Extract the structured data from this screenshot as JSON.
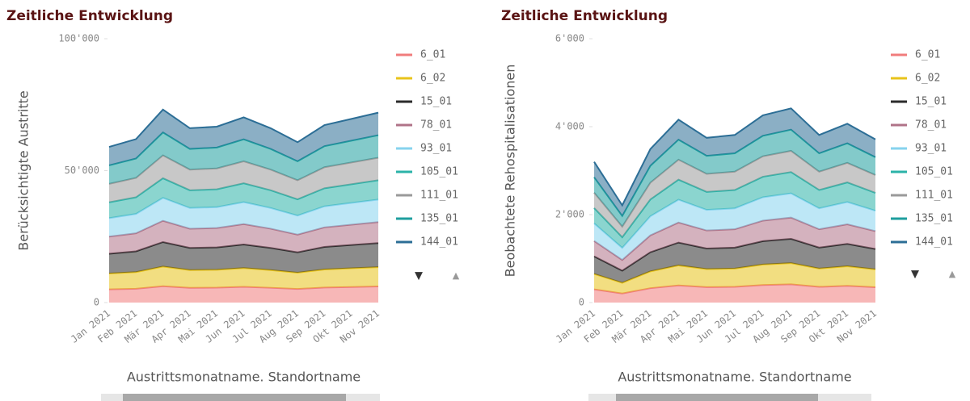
{
  "chart_data": [
    {
      "type": "stacked_area",
      "title": "Zeitliche Entwicklung",
      "y_label": "Berücksichtigte Austritte",
      "x_label": "Austrittsmonatname. Standortname",
      "categories": [
        "Jan 2021",
        "Feb 2021",
        "Mär 2021",
        "Apr 2021",
        "Mai 2021",
        "Jun 2021",
        "Jul 2021",
        "Aug 2021",
        "Sep 2021",
        "Okt 2021",
        "Nov 2021"
      ],
      "ylim": [
        0,
        100000
      ],
      "yticks": [
        0,
        {
          "value": 50000,
          "label": "50'000"
        },
        {
          "value": 100000,
          "label": "100'000"
        }
      ],
      "series": [
        {
          "name": "6_01",
          "color": "#f07c7c",
          "values": [
            5000,
            5250,
            6200,
            5600,
            5650,
            5950,
            5600,
            5150,
            5700,
            5900,
            6100
          ]
        },
        {
          "name": "6_02",
          "color": "#e8c31a",
          "values": [
            6000,
            6300,
            7440,
            6720,
            6780,
            7140,
            6720,
            6180,
            6840,
            7080,
            7320
          ]
        },
        {
          "name": "15_01",
          "color": "#2b2b2b",
          "values": [
            7500,
            7875,
            9300,
            8400,
            8475,
            8925,
            8400,
            7725,
            8550,
            8850,
            9150
          ]
        },
        {
          "name": "78_01",
          "color": "#b07388",
          "values": [
            6500,
            6825,
            8060,
            7280,
            7345,
            7735,
            7280,
            6695,
            7410,
            7670,
            7930
          ]
        },
        {
          "name": "93_01",
          "color": "#86d3ee",
          "values": [
            7000,
            7350,
            8680,
            7840,
            7910,
            8330,
            7840,
            7210,
            7980,
            8260,
            8540
          ]
        },
        {
          "name": "105_01",
          "color": "#2bb3a8",
          "values": [
            6000,
            6300,
            7440,
            6720,
            6780,
            7140,
            6720,
            6180,
            6840,
            7080,
            7320
          ]
        },
        {
          "name": "111_01",
          "color": "#9a9a9a",
          "values": [
            7000,
            7350,
            8680,
            7840,
            7910,
            8330,
            7840,
            7210,
            7980,
            8260,
            8540
          ]
        },
        {
          "name": "135_01",
          "color": "#1e9e9e",
          "values": [
            7000,
            7350,
            8680,
            7840,
            7910,
            8330,
            7840,
            7210,
            7980,
            8260,
            8540
          ]
        },
        {
          "name": "144_01",
          "color": "#2c6e96",
          "values": [
            7000,
            7350,
            8680,
            7840,
            7910,
            8330,
            7840,
            7210,
            7980,
            8260,
            8540
          ]
        }
      ]
    },
    {
      "type": "stacked_area",
      "title": "Zeitliche Entwicklung",
      "y_label": "Beobachtete Rehospitalisationen",
      "x_label": "Austrittsmonatname. Standortname",
      "categories": [
        "Jan 2021",
        "Feb 2021",
        "Mär 2021",
        "Apr 2021",
        "Mai 2021",
        "Jun 2021",
        "Jul 2021",
        "Aug 2021",
        "Sep 2021",
        "Okt 2021",
        "Nov 2021"
      ],
      "ylim": [
        0,
        6000
      ],
      "yticks": [
        0,
        {
          "value": 2000,
          "label": "2'000"
        },
        {
          "value": 4000,
          "label": "4'000"
        },
        {
          "value": 6000,
          "label": "6'000"
        }
      ],
      "series": [
        {
          "name": "6_01",
          "color": "#f07c7c",
          "values": [
            300,
            207,
            327,
            390,
            351,
            357,
            399,
            414,
            357,
            381,
            348
          ]
        },
        {
          "name": "6_02",
          "color": "#e8c31a",
          "values": [
            350,
            242,
            382,
            455,
            410,
            417,
            466,
            483,
            417,
            445,
            406
          ]
        },
        {
          "name": "15_01",
          "color": "#2b2b2b",
          "values": [
            400,
            276,
            436,
            520,
            468,
            476,
            532,
            552,
            476,
            508,
            464
          ]
        },
        {
          "name": "78_01",
          "color": "#b07388",
          "values": [
            350,
            242,
            382,
            455,
            410,
            417,
            466,
            483,
            417,
            445,
            406
          ]
        },
        {
          "name": "93_01",
          "color": "#86d3ee",
          "values": [
            400,
            276,
            436,
            520,
            468,
            476,
            532,
            552,
            476,
            508,
            464
          ]
        },
        {
          "name": "105_01",
          "color": "#2bb3a8",
          "values": [
            350,
            242,
            382,
            455,
            410,
            417,
            466,
            483,
            417,
            445,
            406
          ]
        },
        {
          "name": "111_01",
          "color": "#9a9a9a",
          "values": [
            350,
            242,
            382,
            455,
            410,
            417,
            466,
            483,
            417,
            445,
            406
          ]
        },
        {
          "name": "135_01",
          "color": "#1e9e9e",
          "values": [
            350,
            242,
            382,
            455,
            410,
            417,
            466,
            483,
            417,
            445,
            406
          ]
        },
        {
          "name": "144_01",
          "color": "#2c6e96",
          "values": [
            350,
            242,
            382,
            455,
            410,
            417,
            466,
            483,
            417,
            445,
            406
          ]
        }
      ]
    }
  ]
}
